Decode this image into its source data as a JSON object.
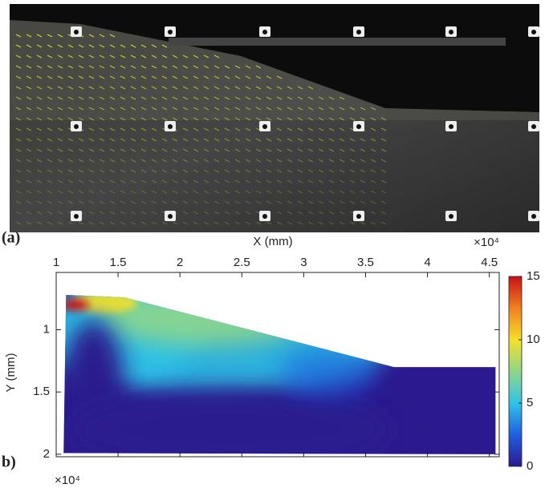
{
  "panel_a": {
    "label": "(a)"
  },
  "chart_data": {
    "type": "contour",
    "panel_label": "b)",
    "x_label": "X (mm)",
    "y_label": "Y (mm)",
    "x_multiplier": "×10⁴",
    "y_multiplier": "×10⁴",
    "xlim": [
      1,
      4.58
    ],
    "xticks": [
      1,
      1.5,
      2,
      2.5,
      3,
      3.5,
      4,
      4.5
    ],
    "ylim": [
      0.54,
      2.02
    ],
    "yticks": [
      1,
      1.5,
      2
    ],
    "y_reversed": true,
    "boundary": {
      "x": [
        1.08,
        1.55,
        3.73,
        4.55,
        4.55,
        1.06
      ],
      "y": [
        0.72,
        0.74,
        1.3,
        1.3,
        2.0,
        1.99
      ]
    },
    "clim": [
      0,
      15
    ],
    "cticks": [
      0,
      5,
      10,
      15
    ],
    "colormap": [
      "#2b1a8f",
      "#1f5fe0",
      "#2fc3e6",
      "#8fd68a",
      "#f4e02a",
      "#f08020",
      "#c8101a"
    ]
  }
}
